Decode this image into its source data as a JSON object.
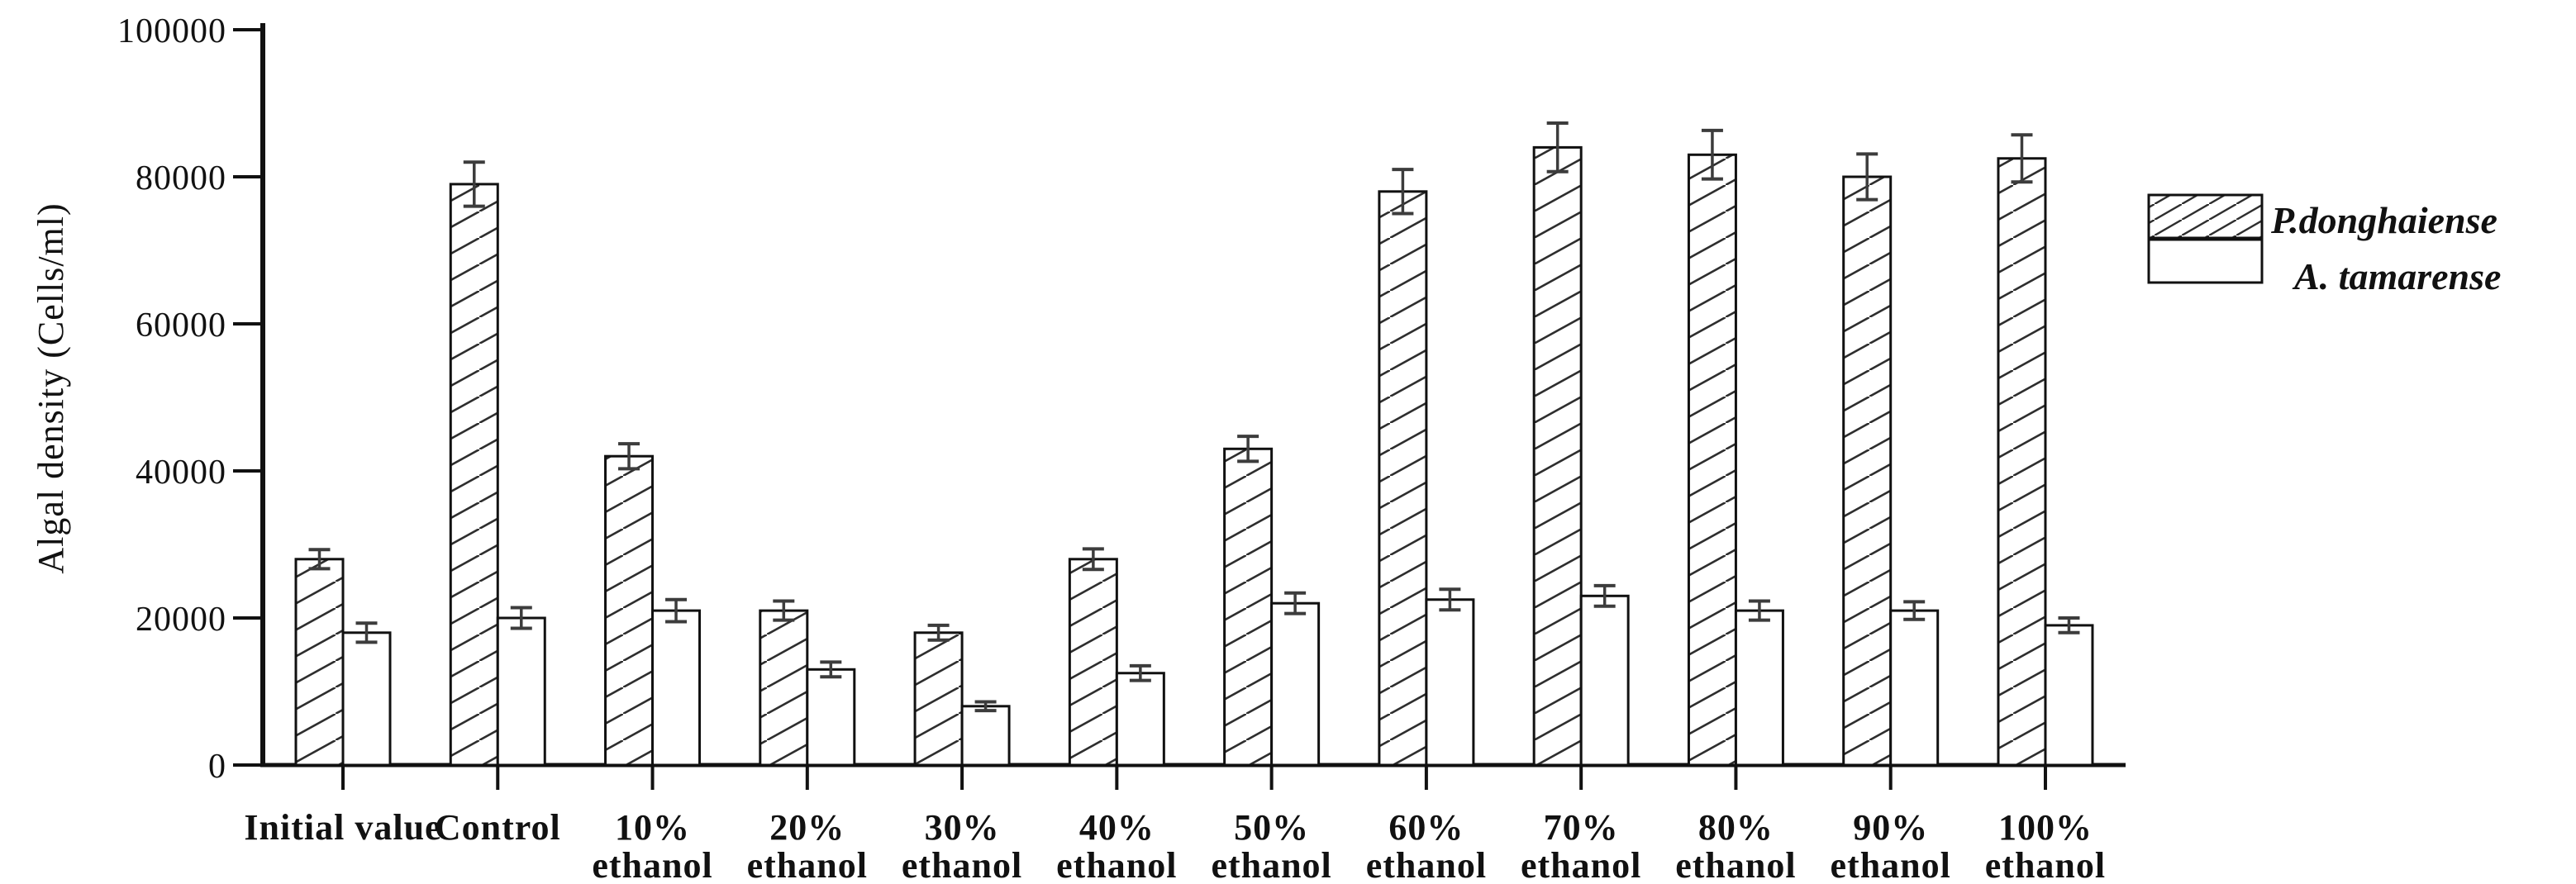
{
  "figure": {
    "background": "#ffffff",
    "ink": "#111111",
    "error_bar_color": "#3c3c3c",
    "hatch_color": "#2e2e2e"
  },
  "chart_data": {
    "type": "bar",
    "title": "",
    "xlabel": "",
    "ylabel": "Algal density (Cells/ml)",
    "ylim": [
      0,
      100000
    ],
    "yticks": [
      0,
      20000,
      40000,
      60000,
      80000,
      100000
    ],
    "ytick_labels": [
      "0",
      "20000",
      "40000",
      "60000",
      "80000",
      "100000"
    ],
    "grid": false,
    "bar_outline": true,
    "legend_position": "right-outside",
    "categories": [
      "Initial value",
      "Control",
      "10% ethanol",
      "20% ethanol",
      "30% ethanol",
      "40% ethanol",
      "50% ethanol",
      "60% ethanol",
      "70% ethanol",
      "80% ethanol",
      "90% ethanol",
      "100% ethanol"
    ],
    "category_label_lines": [
      [
        "Initial value"
      ],
      [
        "Control"
      ],
      [
        "10%",
        "ethanol"
      ],
      [
        "20%",
        "ethanol"
      ],
      [
        "30%",
        "ethanol"
      ],
      [
        "40%",
        "ethanol"
      ],
      [
        "50%",
        "ethanol"
      ],
      [
        "60%",
        "ethanol"
      ],
      [
        "70%",
        "ethanol"
      ],
      [
        "80%",
        "ethanol"
      ],
      [
        "90%",
        "ethanol"
      ],
      [
        "100%",
        "ethanol"
      ]
    ],
    "series": [
      {
        "name": "P.donghaiense",
        "fill": "diagonal-hatch",
        "values": [
          28000,
          79000,
          42000,
          21000,
          18000,
          28000,
          43000,
          78000,
          84000,
          83000,
          80000,
          82500
        ],
        "errors": [
          1300,
          3000,
          1700,
          1300,
          1000,
          1400,
          1700,
          3000,
          3300,
          3300,
          3100,
          3200
        ]
      },
      {
        "name": "A. tamarense",
        "fill": "white",
        "values": [
          18000,
          20000,
          21000,
          13000,
          8000,
          12500,
          22000,
          22500,
          23000,
          21000,
          21000,
          19000
        ],
        "errors": [
          1300,
          1400,
          1500,
          1000,
          600,
          1000,
          1400,
          1400,
          1400,
          1300,
          1200,
          1000
        ]
      }
    ]
  }
}
